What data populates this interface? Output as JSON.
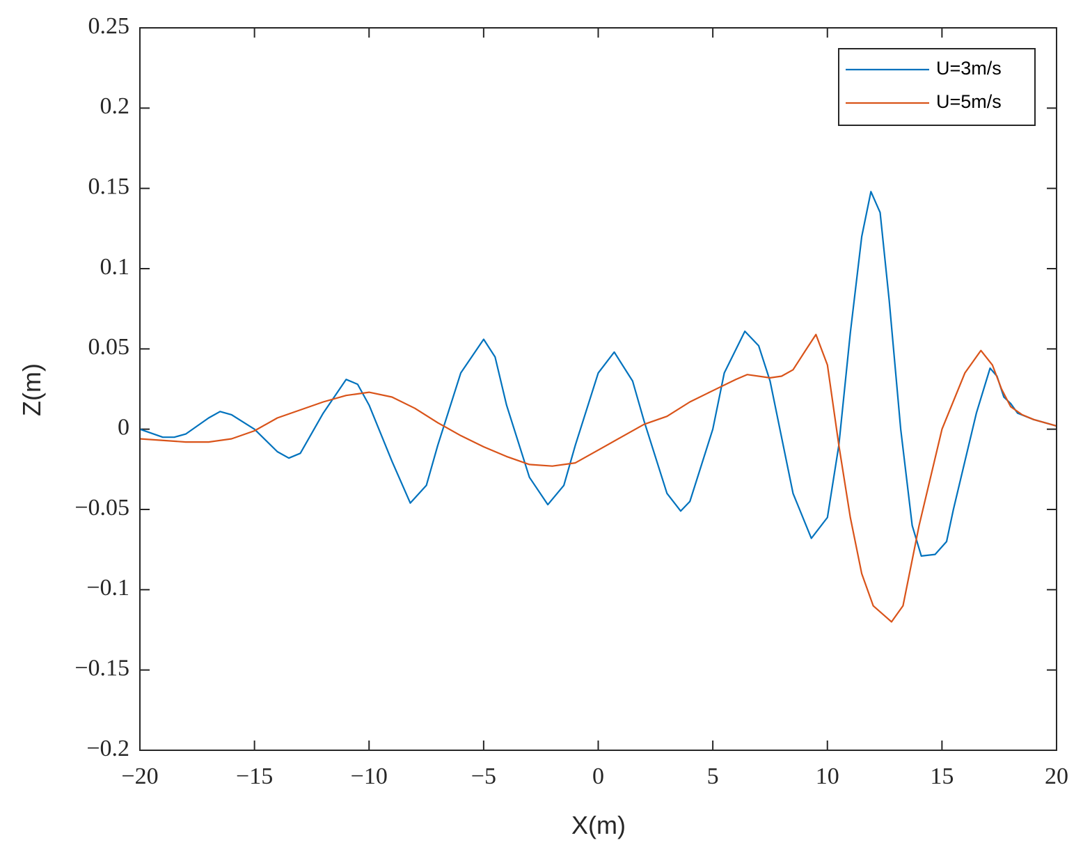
{
  "chart_data": {
    "type": "line",
    "xlabel": "X(m)",
    "ylabel": "Z(m)",
    "xlim": [
      -20,
      20
    ],
    "xticks": [
      {
        "value": -20,
        "label": "−20"
      },
      {
        "value": -15,
        "label": "−15"
      },
      {
        "value": -10,
        "label": "−10"
      },
      {
        "value": -5,
        "label": "−5"
      },
      0,
      5,
      10,
      15,
      20
    ],
    "ylim": [
      -0.2,
      0.25
    ],
    "yticks": [
      {
        "value": -0.2,
        "label": "−0.2"
      },
      {
        "value": -0.15,
        "label": "−0.15"
      },
      {
        "value": -0.1,
        "label": "−0.1"
      },
      {
        "value": -0.05,
        "label": "−0.05"
      },
      0,
      0.05,
      0.1,
      0.15,
      0.2,
      0.25
    ],
    "legend": "upper-right",
    "series": [
      {
        "name": "U=3m/s",
        "color": "#0072bd",
        "x": [
          -20,
          -19,
          -18.5,
          -18,
          -17,
          -16.5,
          -16,
          -15,
          -14,
          -13.5,
          -13,
          -12,
          -11,
          -10.5,
          -10,
          -9,
          -8.2,
          -7.5,
          -7,
          -6,
          -5,
          -4.5,
          -4,
          -3,
          -2.2,
          -1.5,
          -1,
          0,
          0.7,
          1.5,
          2,
          3,
          3.6,
          4,
          5,
          5.5,
          6.4,
          7,
          7.5,
          8,
          8.5,
          9.3,
          10,
          10.5,
          11,
          11.5,
          11.9,
          12.3,
          12.7,
          13.2,
          13.7,
          14.1,
          14.7,
          15.2,
          15.5,
          16,
          16.5,
          17.1,
          17.4,
          17.7,
          18,
          18.3,
          19,
          20
        ],
        "values": [
          0.0,
          -0.005,
          -0.005,
          -0.003,
          0.007,
          0.011,
          0.009,
          0.0,
          -0.014,
          -0.018,
          -0.015,
          0.01,
          0.031,
          0.028,
          0.015,
          -0.02,
          -0.046,
          -0.035,
          -0.01,
          0.035,
          0.056,
          0.045,
          0.015,
          -0.03,
          -0.047,
          -0.035,
          -0.01,
          0.035,
          0.048,
          0.03,
          0.005,
          -0.04,
          -0.051,
          -0.045,
          0.0,
          0.035,
          0.061,
          0.052,
          0.03,
          -0.005,
          -0.04,
          -0.068,
          -0.055,
          -0.01,
          0.06,
          0.12,
          0.148,
          0.135,
          0.08,
          0.0,
          -0.06,
          -0.079,
          -0.078,
          -0.07,
          -0.05,
          -0.02,
          0.01,
          0.038,
          0.033,
          0.02,
          0.016,
          0.01,
          0.006,
          0.002
        ]
      },
      {
        "name": "U=5m/s",
        "color": "#d95319",
        "x": [
          -20,
          -18,
          -17,
          -16,
          -15,
          -14,
          -12,
          -11,
          -10,
          -9,
          -8,
          -7,
          -6,
          -5,
          -4,
          -3,
          -2,
          -1,
          0,
          1,
          2,
          3,
          4,
          5,
          6,
          6.5,
          7.5,
          8,
          8.5,
          9,
          9.5,
          10,
          10.5,
          11,
          11.5,
          12,
          12.8,
          13.3,
          14,
          15,
          16,
          16.7,
          17.2,
          17.6,
          18,
          18.5,
          19,
          20
        ],
        "values": [
          -0.006,
          -0.008,
          -0.008,
          -0.006,
          -0.001,
          0.007,
          0.017,
          0.021,
          0.023,
          0.02,
          0.013,
          0.004,
          -0.004,
          -0.011,
          -0.017,
          -0.022,
          -0.023,
          -0.021,
          -0.013,
          -0.005,
          0.003,
          0.008,
          0.017,
          0.024,
          0.031,
          0.034,
          0.032,
          0.033,
          0.037,
          0.048,
          0.059,
          0.04,
          -0.01,
          -0.055,
          -0.09,
          -0.11,
          -0.12,
          -0.11,
          -0.06,
          0.0,
          0.035,
          0.049,
          0.04,
          0.025,
          0.014,
          0.009,
          0.006,
          0.002
        ]
      }
    ]
  }
}
